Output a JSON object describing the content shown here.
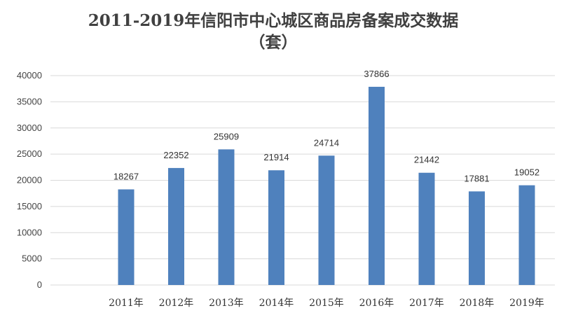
{
  "chart_data": {
    "type": "bar",
    "title": "2011-2019年信阳市中心城区商品房备案成交数据",
    "subtitle": "（套）",
    "categories": [
      "2011年",
      "2012年",
      "2013年",
      "2014年",
      "2015年",
      "2016年",
      "2017年",
      "2018年",
      "2019年"
    ],
    "values": [
      18267,
      22352,
      25909,
      21914,
      24714,
      37866,
      21442,
      17881,
      19052
    ],
    "data_labels": [
      "18267",
      "22352",
      "25909",
      "21914",
      "24714",
      "37866",
      "21442",
      "17881",
      "19052"
    ],
    "ylim": [
      0,
      40000
    ],
    "yticks": [
      0,
      5000,
      10000,
      15000,
      20000,
      25000,
      30000,
      35000,
      40000
    ],
    "ytick_labels": [
      "0",
      "5000",
      "10000",
      "15000",
      "20000",
      "25000",
      "30000",
      "35000",
      "40000"
    ],
    "grid": true,
    "legend": "none",
    "bar_color": "#4f81bd",
    "grid_color": "#d9d9d9"
  }
}
